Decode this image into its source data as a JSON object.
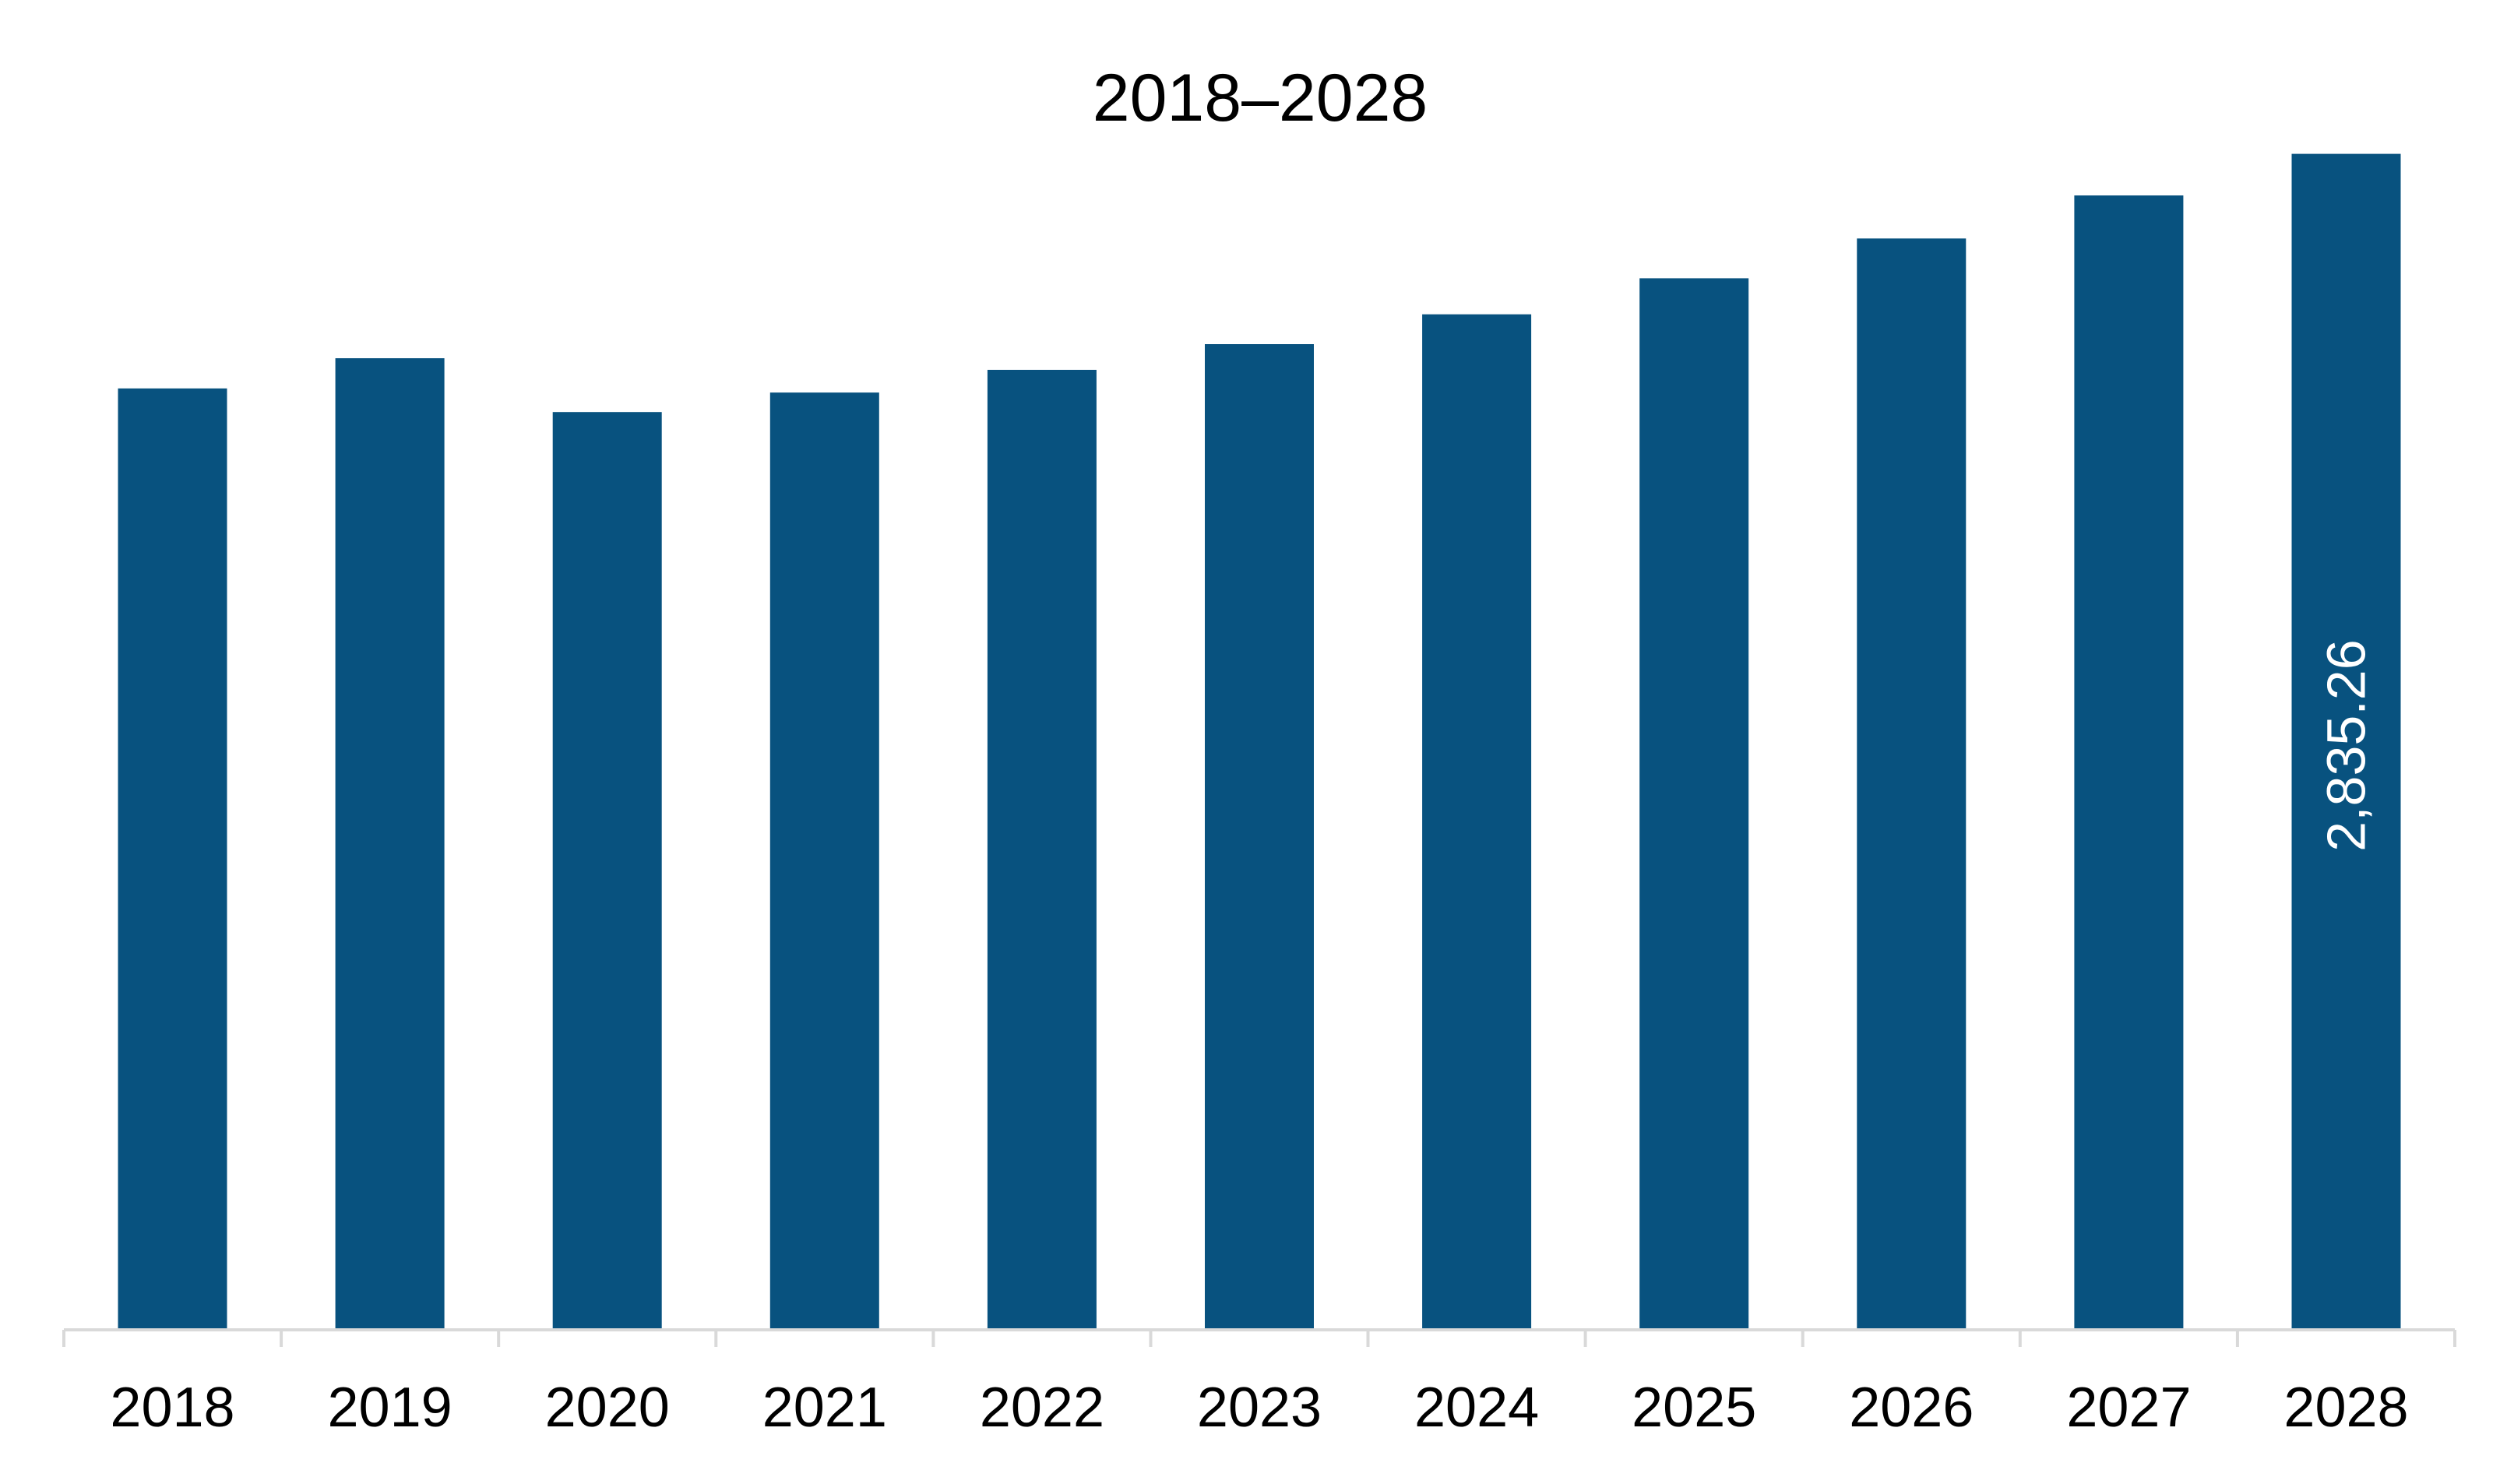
{
  "chart_data": {
    "type": "bar",
    "title": "2018–2028",
    "xlabel": "",
    "ylabel": "",
    "categories": [
      "2018",
      "2019",
      "2020",
      "2021",
      "2022",
      "2023",
      "2024",
      "2025",
      "2026",
      "2027",
      "2028"
    ],
    "values": [
      2269,
      2342,
      2212,
      2259,
      2314,
      2376,
      2448,
      2535,
      2631,
      2735,
      2835.26
    ],
    "data_labels": [
      {
        "category": "2028",
        "text": "2,835.26"
      }
    ],
    "ylim": [
      0,
      2900
    ],
    "grid": false,
    "legend": "none",
    "colors": {
      "bar": "#08527F",
      "axis": "#D9D9D9",
      "data_label": "#FFFFFF"
    }
  }
}
